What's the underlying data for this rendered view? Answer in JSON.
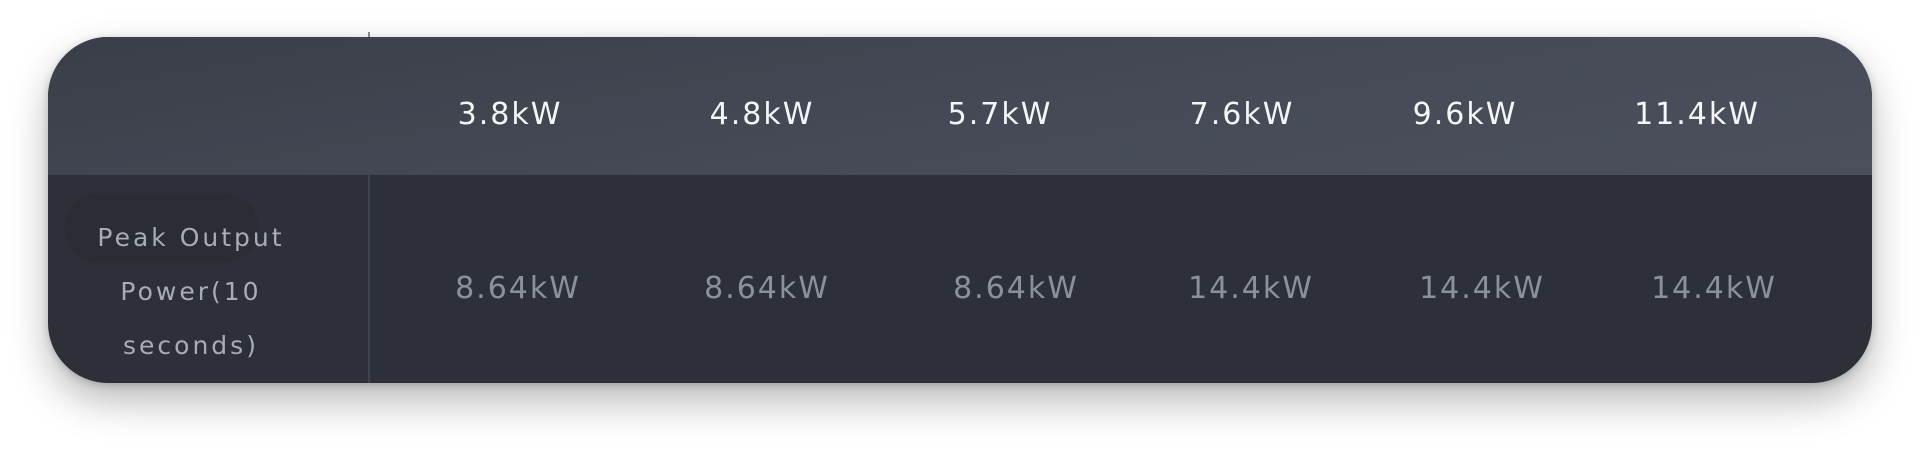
{
  "columns": [
    "3.8kW",
    "4.8kW",
    "5.7kW",
    "7.6kW",
    "9.6kW",
    "11.4kW"
  ],
  "row": {
    "label": "Peak Output Power(10 seconds)",
    "values": [
      "8.64kW",
      "8.64kW",
      "8.64kW",
      "14.4kW",
      "14.4kW",
      "14.4kW"
    ]
  }
}
